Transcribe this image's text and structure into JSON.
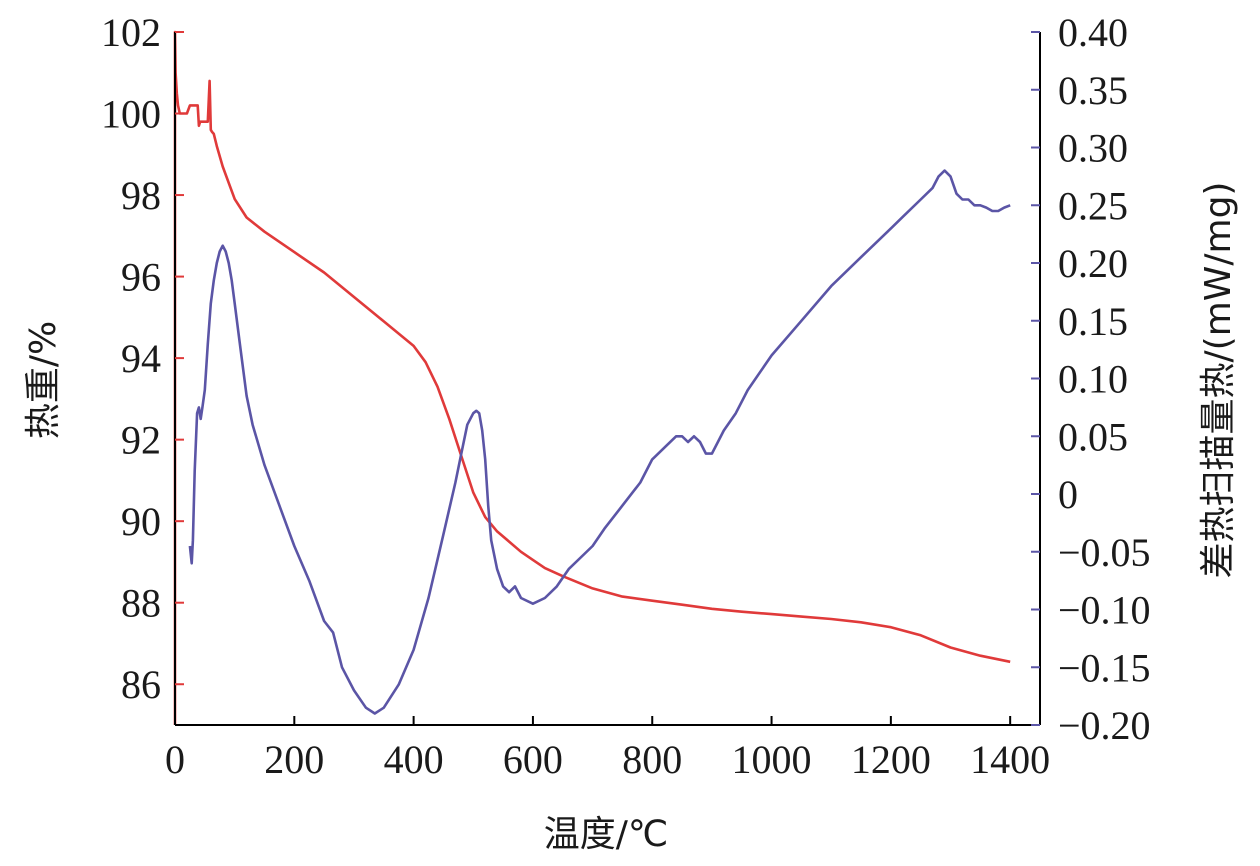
{
  "chart_data": {
    "type": "line",
    "title": "",
    "xlabel": "温度/℃",
    "ylabel": "热重/%",
    "y2label": "差热扫描量热/(mW/mg)",
    "xlim": [
      0,
      1450
    ],
    "ylim": [
      85,
      102
    ],
    "y2lim": [
      -0.2,
      0.4
    ],
    "xticks": [
      0,
      200,
      400,
      600,
      800,
      1000,
      1200,
      1400
    ],
    "yticks": [
      86,
      88,
      90,
      92,
      94,
      96,
      98,
      100,
      102
    ],
    "y2ticks": [
      "0.40",
      "0.35",
      "0.30",
      "0.25",
      "0.20",
      "0.15",
      "0.10",
      "0.05",
      "0",
      "−0.05",
      "−0.10",
      "−0.15",
      "−0.20"
    ],
    "y2tick_values": [
      0.4,
      0.35,
      0.3,
      0.25,
      0.2,
      0.15,
      0.1,
      0.05,
      0,
      -0.05,
      -0.1,
      -0.15,
      -0.2
    ],
    "grid": false,
    "colors": {
      "tg": "#e03a3a",
      "dsc": "#5b55a6",
      "left_axis": "#e03a3a",
      "right_axis": "#5b55a6"
    },
    "series": [
      {
        "axis": "left",
        "x": [
          0,
          0,
          1,
          3,
          5,
          8,
          10,
          13,
          15,
          20,
          25,
          30,
          35,
          38,
          40,
          42,
          45,
          50,
          55,
          58,
          60,
          62,
          65,
          70,
          80,
          90,
          100,
          120,
          150,
          200,
          250,
          300,
          350,
          400,
          420,
          440,
          460,
          480,
          500,
          520,
          540,
          560,
          580,
          600,
          620,
          650,
          700,
          750,
          800,
          850,
          900,
          950,
          1000,
          1050,
          1100,
          1150,
          1200,
          1250,
          1300,
          1350,
          1400
        ],
        "y": [
          85.0,
          102.0,
          101.0,
          100.5,
          100.2,
          100.0,
          100.0,
          100.0,
          100.0,
          100.0,
          100.2,
          100.2,
          100.2,
          100.2,
          99.7,
          99.8,
          99.8,
          99.8,
          99.8,
          100.8,
          99.6,
          99.55,
          99.5,
          99.2,
          98.7,
          98.3,
          97.9,
          97.45,
          97.1,
          96.6,
          96.1,
          95.5,
          94.9,
          94.3,
          93.9,
          93.3,
          92.5,
          91.6,
          90.7,
          90.1,
          89.75,
          89.5,
          89.25,
          89.05,
          88.85,
          88.65,
          88.35,
          88.15,
          88.05,
          87.95,
          87.85,
          87.78,
          87.72,
          87.66,
          87.6,
          87.52,
          87.4,
          87.2,
          86.9,
          86.7,
          86.55
        ]
      },
      {
        "axis": "right",
        "x": [
          25,
          28,
          30,
          33,
          37,
          40,
          43,
          46,
          50,
          55,
          60,
          65,
          70,
          75,
          80,
          85,
          90,
          95,
          100,
          110,
          120,
          130,
          150,
          175,
          200,
          225,
          250,
          265,
          280,
          300,
          320,
          335,
          350,
          375,
          400,
          425,
          450,
          470,
          480,
          490,
          500,
          505,
          510,
          515,
          520,
          525,
          530,
          540,
          550,
          560,
          570,
          580,
          600,
          620,
          640,
          660,
          680,
          700,
          720,
          750,
          780,
          800,
          820,
          840,
          850,
          860,
          870,
          880,
          890,
          900,
          910,
          920,
          940,
          960,
          1000,
          1050,
          1100,
          1150,
          1200,
          1220,
          1250,
          1270,
          1280,
          1290,
          1300,
          1310,
          1320,
          1330,
          1340,
          1350,
          1360,
          1370,
          1380,
          1390,
          1400
        ],
        "y": [
          -0.045,
          -0.06,
          -0.04,
          0.02,
          0.07,
          0.075,
          0.065,
          0.075,
          0.09,
          0.13,
          0.165,
          0.185,
          0.2,
          0.21,
          0.215,
          0.21,
          0.2,
          0.185,
          0.165,
          0.125,
          0.085,
          0.06,
          0.025,
          -0.01,
          -0.045,
          -0.075,
          -0.11,
          -0.12,
          -0.15,
          -0.17,
          -0.185,
          -0.19,
          -0.185,
          -0.165,
          -0.135,
          -0.09,
          -0.035,
          0.01,
          0.035,
          0.06,
          0.07,
          0.072,
          0.07,
          0.055,
          0.03,
          -0.01,
          -0.04,
          -0.065,
          -0.08,
          -0.085,
          -0.08,
          -0.09,
          -0.095,
          -0.09,
          -0.08,
          -0.065,
          -0.055,
          -0.045,
          -0.03,
          -0.01,
          0.01,
          0.03,
          0.04,
          0.05,
          0.05,
          0.045,
          0.05,
          0.045,
          0.035,
          0.035,
          0.045,
          0.055,
          0.07,
          0.09,
          0.12,
          0.15,
          0.18,
          0.205,
          0.23,
          0.24,
          0.255,
          0.265,
          0.275,
          0.28,
          0.275,
          0.26,
          0.255,
          0.255,
          0.25,
          0.25,
          0.248,
          0.245,
          0.245,
          0.248,
          0.25
        ]
      }
    ]
  }
}
